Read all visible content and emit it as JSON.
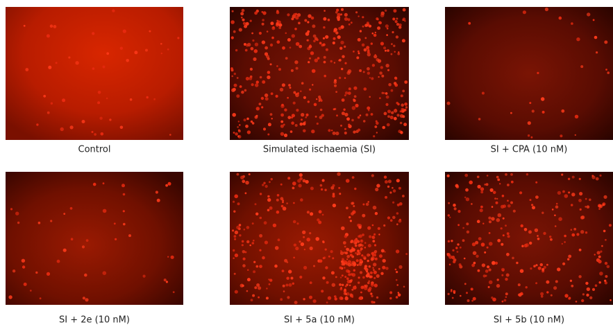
{
  "panels": [
    {
      "caption": "Control"
    },
    {
      "caption": "Simulated ischaemia (SI)"
    },
    {
      "caption": "SI + CPA (10 nM)"
    },
    {
      "caption": "SI + 2e (10 nM)"
    },
    {
      "caption": "SI + 5a (10 nM)"
    },
    {
      "caption": "SI + 5b (10 nM)"
    }
  ]
}
